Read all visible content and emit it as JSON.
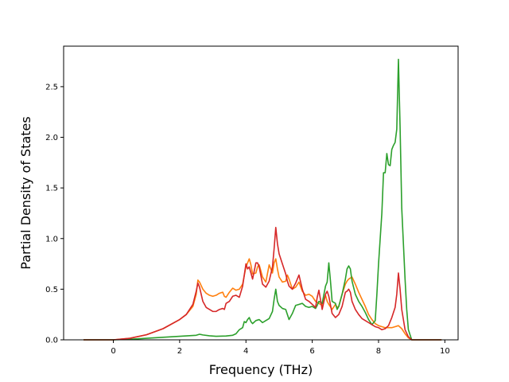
{
  "chart_data": {
    "type": "line",
    "title": "",
    "xlabel": "Frequency (THz)",
    "ylabel": "Partial Density of States",
    "xlim": [
      -1.5,
      10.4
    ],
    "ylim": [
      0,
      2.9
    ],
    "xticks": [
      0,
      2,
      4,
      6,
      8,
      10
    ],
    "yticks": [
      0.0,
      0.5,
      1.0,
      1.5,
      2.0,
      2.5
    ],
    "xtick_labels": [
      "0",
      "2",
      "4",
      "6",
      "8",
      "10"
    ],
    "ytick_labels": [
      "0.0",
      "0.5",
      "1.0",
      "1.5",
      "2.0",
      "2.5"
    ],
    "grid": false,
    "legend": false,
    "series": [
      {
        "color": "#ff7f0e",
        "points": [
          [
            -0.9,
            0
          ],
          [
            0,
            0
          ],
          [
            0.5,
            0.015
          ],
          [
            1,
            0.05
          ],
          [
            1.5,
            0.11
          ],
          [
            2,
            0.2
          ],
          [
            2.2,
            0.25
          ],
          [
            2.4,
            0.33
          ],
          [
            2.5,
            0.45
          ],
          [
            2.55,
            0.59
          ],
          [
            2.6,
            0.57
          ],
          [
            2.7,
            0.5
          ],
          [
            2.8,
            0.46
          ],
          [
            2.9,
            0.44
          ],
          [
            3.0,
            0.43
          ],
          [
            3.1,
            0.44
          ],
          [
            3.2,
            0.46
          ],
          [
            3.3,
            0.47
          ],
          [
            3.35,
            0.43
          ],
          [
            3.4,
            0.42
          ],
          [
            3.5,
            0.47
          ],
          [
            3.6,
            0.51
          ],
          [
            3.7,
            0.49
          ],
          [
            3.8,
            0.5
          ],
          [
            3.9,
            0.55
          ],
          [
            4.0,
            0.72
          ],
          [
            4.05,
            0.76
          ],
          [
            4.1,
            0.8
          ],
          [
            4.15,
            0.74
          ],
          [
            4.2,
            0.65
          ],
          [
            4.3,
            0.66
          ],
          [
            4.35,
            0.72
          ],
          [
            4.4,
            0.74
          ],
          [
            4.5,
            0.62
          ],
          [
            4.6,
            0.57
          ],
          [
            4.7,
            0.74
          ],
          [
            4.8,
            0.66
          ],
          [
            4.85,
            0.76
          ],
          [
            4.9,
            0.8
          ],
          [
            4.95,
            0.7
          ],
          [
            5.0,
            0.62
          ],
          [
            5.1,
            0.57
          ],
          [
            5.2,
            0.58
          ],
          [
            5.25,
            0.64
          ],
          [
            5.3,
            0.6
          ],
          [
            5.4,
            0.5
          ],
          [
            5.5,
            0.52
          ],
          [
            5.6,
            0.57
          ],
          [
            5.7,
            0.48
          ],
          [
            5.8,
            0.44
          ],
          [
            5.9,
            0.45
          ],
          [
            6.0,
            0.43
          ],
          [
            6.1,
            0.38
          ],
          [
            6.2,
            0.36
          ],
          [
            6.3,
            0.34
          ],
          [
            6.4,
            0.44
          ],
          [
            6.45,
            0.38
          ],
          [
            6.5,
            0.35
          ],
          [
            6.6,
            0.3
          ],
          [
            6.7,
            0.35
          ],
          [
            6.75,
            0.32
          ],
          [
            6.8,
            0.33
          ],
          [
            6.9,
            0.45
          ],
          [
            7.0,
            0.55
          ],
          [
            7.05,
            0.58
          ],
          [
            7.1,
            0.6
          ],
          [
            7.2,
            0.62
          ],
          [
            7.3,
            0.55
          ],
          [
            7.4,
            0.47
          ],
          [
            7.5,
            0.4
          ],
          [
            7.6,
            0.33
          ],
          [
            7.7,
            0.25
          ],
          [
            7.8,
            0.2
          ],
          [
            7.9,
            0.16
          ],
          [
            8.0,
            0.14
          ],
          [
            8.1,
            0.13
          ],
          [
            8.2,
            0.12
          ],
          [
            8.3,
            0.12
          ],
          [
            8.4,
            0.12
          ],
          [
            8.5,
            0.13
          ],
          [
            8.6,
            0.14
          ],
          [
            8.7,
            0.11
          ],
          [
            8.8,
            0.06
          ],
          [
            8.9,
            0.02
          ],
          [
            9.0,
            0
          ],
          [
            9.9,
            0
          ]
        ]
      },
      {
        "color": "#2ca02c",
        "points": [
          [
            -0.9,
            0
          ],
          [
            0,
            0
          ],
          [
            0.5,
            0.005
          ],
          [
            1,
            0.015
          ],
          [
            1.5,
            0.025
          ],
          [
            2,
            0.035
          ],
          [
            2.5,
            0.045
          ],
          [
            2.6,
            0.055
          ],
          [
            2.7,
            0.048
          ],
          [
            2.9,
            0.04
          ],
          [
            3.1,
            0.035
          ],
          [
            3.4,
            0.038
          ],
          [
            3.6,
            0.045
          ],
          [
            3.7,
            0.06
          ],
          [
            3.8,
            0.1
          ],
          [
            3.9,
            0.12
          ],
          [
            3.95,
            0.18
          ],
          [
            4.0,
            0.17
          ],
          [
            4.05,
            0.2
          ],
          [
            4.1,
            0.22
          ],
          [
            4.15,
            0.18
          ],
          [
            4.2,
            0.16
          ],
          [
            4.3,
            0.19
          ],
          [
            4.4,
            0.2
          ],
          [
            4.5,
            0.17
          ],
          [
            4.6,
            0.19
          ],
          [
            4.7,
            0.21
          ],
          [
            4.8,
            0.28
          ],
          [
            4.85,
            0.4
          ],
          [
            4.9,
            0.5
          ],
          [
            4.95,
            0.38
          ],
          [
            5.0,
            0.34
          ],
          [
            5.1,
            0.31
          ],
          [
            5.2,
            0.3
          ],
          [
            5.3,
            0.2
          ],
          [
            5.4,
            0.26
          ],
          [
            5.5,
            0.34
          ],
          [
            5.6,
            0.35
          ],
          [
            5.7,
            0.36
          ],
          [
            5.8,
            0.33
          ],
          [
            5.9,
            0.32
          ],
          [
            6.0,
            0.33
          ],
          [
            6.1,
            0.31
          ],
          [
            6.15,
            0.34
          ],
          [
            6.2,
            0.38
          ],
          [
            6.3,
            0.36
          ],
          [
            6.4,
            0.53
          ],
          [
            6.45,
            0.57
          ],
          [
            6.5,
            0.76
          ],
          [
            6.55,
            0.58
          ],
          [
            6.6,
            0.38
          ],
          [
            6.7,
            0.36
          ],
          [
            6.75,
            0.3
          ],
          [
            6.8,
            0.33
          ],
          [
            6.9,
            0.45
          ],
          [
            7.0,
            0.6
          ],
          [
            7.05,
            0.7
          ],
          [
            7.1,
            0.73
          ],
          [
            7.15,
            0.7
          ],
          [
            7.2,
            0.58
          ],
          [
            7.3,
            0.45
          ],
          [
            7.4,
            0.38
          ],
          [
            7.5,
            0.33
          ],
          [
            7.6,
            0.27
          ],
          [
            7.7,
            0.2
          ],
          [
            7.8,
            0.15
          ],
          [
            7.9,
            0.19
          ],
          [
            7.95,
            0.45
          ],
          [
            8.0,
            0.75
          ],
          [
            8.05,
            1.0
          ],
          [
            8.1,
            1.25
          ],
          [
            8.15,
            1.65
          ],
          [
            8.2,
            1.65
          ],
          [
            8.25,
            1.84
          ],
          [
            8.3,
            1.73
          ],
          [
            8.35,
            1.72
          ],
          [
            8.4,
            1.88
          ],
          [
            8.45,
            1.92
          ],
          [
            8.5,
            1.95
          ],
          [
            8.55,
            2.08
          ],
          [
            8.6,
            2.77
          ],
          [
            8.65,
            2.1
          ],
          [
            8.7,
            1.3
          ],
          [
            8.75,
            0.95
          ],
          [
            8.8,
            0.6
          ],
          [
            8.85,
            0.3
          ],
          [
            8.9,
            0.1
          ],
          [
            9.0,
            0
          ],
          [
            9.9,
            0
          ]
        ]
      },
      {
        "color": "#d62728",
        "points": [
          [
            -0.9,
            0
          ],
          [
            0,
            0
          ],
          [
            0.5,
            0.015
          ],
          [
            1,
            0.05
          ],
          [
            1.5,
            0.11
          ],
          [
            2,
            0.2
          ],
          [
            2.2,
            0.25
          ],
          [
            2.4,
            0.35
          ],
          [
            2.5,
            0.48
          ],
          [
            2.55,
            0.56
          ],
          [
            2.6,
            0.52
          ],
          [
            2.7,
            0.38
          ],
          [
            2.8,
            0.32
          ],
          [
            2.9,
            0.3
          ],
          [
            3.0,
            0.28
          ],
          [
            3.1,
            0.28
          ],
          [
            3.2,
            0.3
          ],
          [
            3.3,
            0.31
          ],
          [
            3.35,
            0.3
          ],
          [
            3.4,
            0.36
          ],
          [
            3.5,
            0.38
          ],
          [
            3.6,
            0.43
          ],
          [
            3.7,
            0.44
          ],
          [
            3.8,
            0.42
          ],
          [
            3.9,
            0.53
          ],
          [
            4.0,
            0.75
          ],
          [
            4.05,
            0.7
          ],
          [
            4.1,
            0.72
          ],
          [
            4.15,
            0.66
          ],
          [
            4.2,
            0.6
          ],
          [
            4.3,
            0.76
          ],
          [
            4.35,
            0.76
          ],
          [
            4.4,
            0.72
          ],
          [
            4.5,
            0.55
          ],
          [
            4.6,
            0.52
          ],
          [
            4.7,
            0.58
          ],
          [
            4.8,
            0.72
          ],
          [
            4.85,
            0.9
          ],
          [
            4.9,
            1.11
          ],
          [
            4.95,
            0.95
          ],
          [
            5.0,
            0.85
          ],
          [
            5.1,
            0.75
          ],
          [
            5.2,
            0.65
          ],
          [
            5.25,
            0.58
          ],
          [
            5.3,
            0.53
          ],
          [
            5.4,
            0.5
          ],
          [
            5.5,
            0.56
          ],
          [
            5.6,
            0.64
          ],
          [
            5.7,
            0.5
          ],
          [
            5.8,
            0.4
          ],
          [
            5.9,
            0.38
          ],
          [
            6.0,
            0.35
          ],
          [
            6.1,
            0.32
          ],
          [
            6.15,
            0.42
          ],
          [
            6.2,
            0.49
          ],
          [
            6.3,
            0.3
          ],
          [
            6.4,
            0.45
          ],
          [
            6.45,
            0.48
          ],
          [
            6.5,
            0.43
          ],
          [
            6.6,
            0.26
          ],
          [
            6.7,
            0.22
          ],
          [
            6.8,
            0.25
          ],
          [
            6.9,
            0.33
          ],
          [
            7.0,
            0.47
          ],
          [
            7.05,
            0.48
          ],
          [
            7.1,
            0.5
          ],
          [
            7.15,
            0.47
          ],
          [
            7.2,
            0.38
          ],
          [
            7.3,
            0.3
          ],
          [
            7.4,
            0.25
          ],
          [
            7.5,
            0.21
          ],
          [
            7.6,
            0.19
          ],
          [
            7.7,
            0.17
          ],
          [
            7.8,
            0.15
          ],
          [
            7.9,
            0.13
          ],
          [
            8.0,
            0.12
          ],
          [
            8.1,
            0.1
          ],
          [
            8.2,
            0.11
          ],
          [
            8.3,
            0.14
          ],
          [
            8.4,
            0.22
          ],
          [
            8.5,
            0.32
          ],
          [
            8.55,
            0.45
          ],
          [
            8.6,
            0.66
          ],
          [
            8.65,
            0.5
          ],
          [
            8.7,
            0.3
          ],
          [
            8.8,
            0.1
          ],
          [
            8.9,
            0.03
          ],
          [
            9.0,
            0
          ],
          [
            9.9,
            0
          ]
        ]
      }
    ]
  }
}
